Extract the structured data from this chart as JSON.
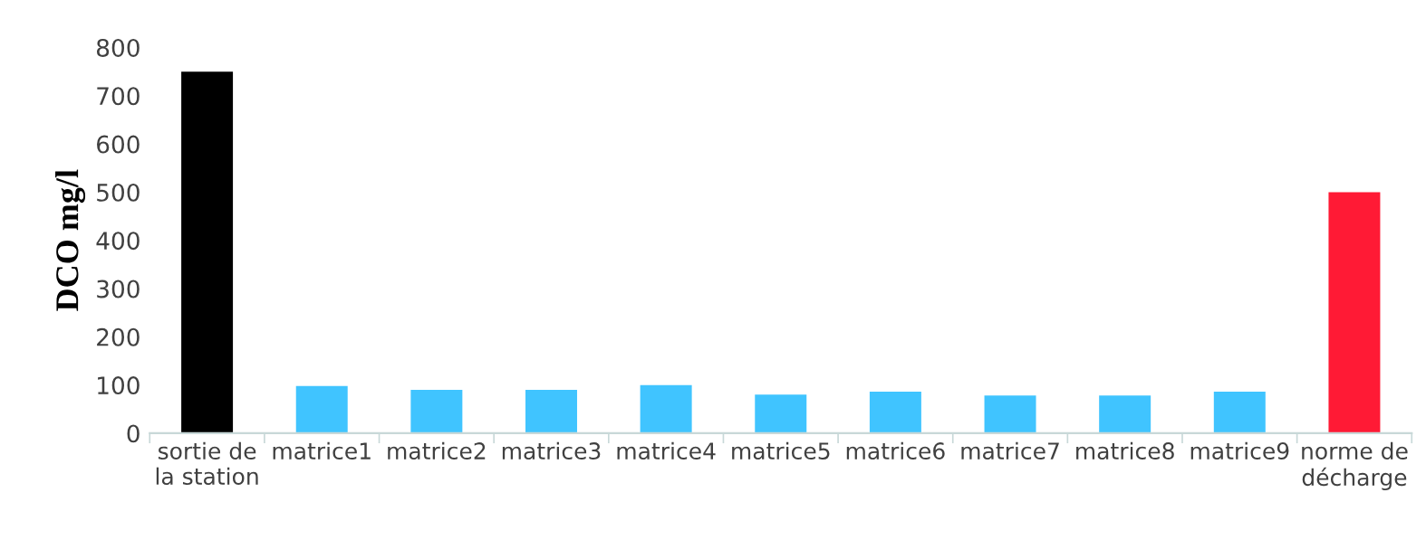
{
  "chart_data": {
    "type": "bar",
    "ylabel": "DCO mg/l",
    "categories": [
      "sortie de\nla station",
      "matrice1",
      "matrice2",
      "matrice3",
      "matrice4",
      "matrice5",
      "matrice6",
      "matrice7",
      "matrice8",
      "matrice9",
      "norme de\ndécharge"
    ],
    "values": [
      750,
      98,
      90,
      90,
      100,
      80,
      86,
      78,
      78,
      86,
      500
    ],
    "colors": [
      "#000000",
      "#40c4ff",
      "#40c4ff",
      "#40c4ff",
      "#40c4ff",
      "#40c4ff",
      "#40c4ff",
      "#40c4ff",
      "#40c4ff",
      "#40c4ff",
      "#ff1a35"
    ],
    "ylim": [
      0,
      800
    ],
    "yticks": [
      0,
      100,
      200,
      300,
      400,
      500,
      600,
      700,
      800
    ],
    "grid": false,
    "legend": false
  }
}
